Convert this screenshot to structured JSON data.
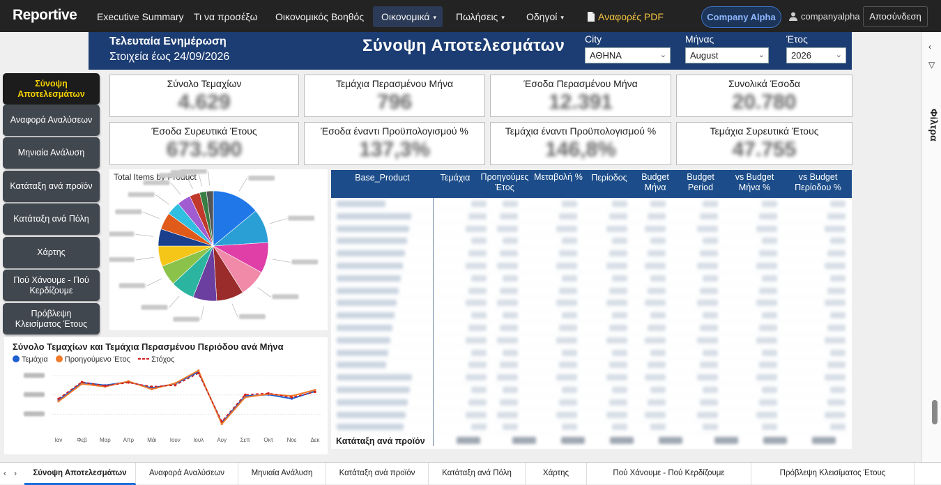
{
  "nav": {
    "brand": "Reportive",
    "items": [
      {
        "label": "Executive Summary",
        "caret": ""
      },
      {
        "label": "Τι να προσέξω",
        "caret": ""
      },
      {
        "label": "Οικονομικός Βοηθός",
        "caret": ""
      },
      {
        "label": "Οικονομικά",
        "caret": "▾"
      },
      {
        "label": "Πωλήσεις",
        "caret": "▾"
      },
      {
        "label": "Οδηγοί",
        "caret": "▾"
      }
    ],
    "pdf_label": "Αναφορές PDF",
    "company": "Company Alpha",
    "user": "companyalpha",
    "logout": "Αποσύνδεση"
  },
  "header": {
    "update_title": "Τελευταία Ενημέρωση",
    "update_date": "Στοιχεία έως 24/09/2026",
    "title": "Σύνοψη Αποτελεσμάτων",
    "filters": [
      {
        "label": "City",
        "value": "ΑΘΗΝΑ"
      },
      {
        "label": "Μήνας",
        "value": "August"
      },
      {
        "label": "Έτος",
        "value": "2026"
      }
    ]
  },
  "sidebar": [
    "Σύνοψη Αποτελεσμάτων",
    "Αναφορά Αναλύσεων",
    "Μηνιαία Ανάλυση",
    "Κατάταξη ανά προϊόν",
    "Κατάταξη ανά Πόλη",
    "Χάρτης",
    "Πού Χάνουμε - Πού Κερδίζουμε",
    "Πρόβλεψη Κλεισίματος Έτους"
  ],
  "kpis": [
    {
      "label": "Σύνολο Τεμαχίων",
      "value": "4.629"
    },
    {
      "label": "Τεμάχια Περασμένου Μήνα",
      "value": "796"
    },
    {
      "label": "Έσοδα Περασμένου Μήνα",
      "value": "12.391"
    },
    {
      "label": "Συνολικά Έσοδα",
      "value": "20.780"
    },
    {
      "label": "Έσοδα Συρευτικά Έτους",
      "value": "673.590"
    },
    {
      "label": "Έσοδα έναντι Προϋπολογισμού %",
      "value": "137,3%"
    },
    {
      "label": "Τεμάχια έναντι Προϋπολογισμού %",
      "value": "146,8%"
    },
    {
      "label": "Τεμάχια Συρευτικά Έτους",
      "value": "47.755"
    }
  ],
  "pie": {
    "title": "Total Items by Product",
    "colors": [
      "#1f77e8",
      "#2a9fd6",
      "#e03fa8",
      "#f08aa8",
      "#9a2c2c",
      "#6b3fa0",
      "#2bb5a0",
      "#8bc34a",
      "#f5c518",
      "#1a3f8c",
      "#e05a1a",
      "#30bfe0",
      "#a05cd0",
      "#c0392b",
      "#3a7d44",
      "#555555"
    ]
  },
  "table": {
    "columns": [
      "Base_Product",
      "Τεμάχια",
      "Προηγούμες Έτος",
      "Μεταβολή %",
      "Περίοδος",
      "Budget Μήνα",
      "Budget Period",
      "vs Budget Μήνα %",
      "vs Budget Περίοδου %"
    ],
    "footer_label": "Κατάταξη ανά προϊόν",
    "row_count": 19
  },
  "line_chart": {
    "title": "Σύνολο Τεμαχίων και Τεμάχια Περασμένου Περιόδου ανά Μήνα",
    "legend": [
      "Τεμάχια",
      "Προηγούμενο Έτος",
      "Στόχος"
    ],
    "months": [
      "Ιαν",
      "Φεβ",
      "Μαρ",
      "Απρ",
      "Μάι",
      "Ιουν",
      "Ιουλ",
      "Αυγ",
      "Σεπ",
      "Οκτ",
      "Νοε",
      "Δεκ"
    ]
  },
  "chart_data": {
    "type": "line",
    "title": "Σύνολο Τεμαχίων και Τεμάχια Περασμένου Περιόδου ανά Μήνα",
    "categories": [
      "Ιαν",
      "Φεβ",
      "Μαρ",
      "Απρ",
      "Μάι",
      "Ιουν",
      "Ιουλ",
      "Αυγ",
      "Σεπ",
      "Οκτ",
      "Νοε",
      "Δεκ"
    ],
    "ylim": [
      0,
      5000
    ],
    "series": [
      {
        "name": "Τεμάχια",
        "color": "#1f5fd0",
        "values": [
          2500,
          3800,
          3600,
          3850,
          3400,
          3700,
          4600,
          800,
          2800,
          2900,
          2600,
          3150
        ]
      },
      {
        "name": "Προηγούμενο Έτος",
        "color": "#f07a2a",
        "values": [
          2400,
          3700,
          3500,
          3900,
          3300,
          3750,
          4700,
          700,
          2700,
          2950,
          2800,
          3250
        ]
      },
      {
        "name": "Στόχος",
        "color": "#d32020",
        "values": [
          2600,
          3850,
          3550,
          3800,
          3500,
          3600,
          4500,
          900,
          2900,
          3000,
          2700,
          3100
        ]
      }
    ]
  },
  "tabs": [
    "Σύνοψη Αποτελεσμάτων",
    "Αναφορά Αναλύσεων",
    "Μηνιαία Ανάλυση",
    "Κατάταξη ανά προϊόν",
    "Κατάταξη ανά Πόλη",
    "Χάρτης",
    "Πού Χάνουμε - Πού Κερδίζουμε",
    "Πρόβλεψη Κλεισίματος Έτους"
  ],
  "filters_pane": {
    "label": "Φίλτρα"
  }
}
